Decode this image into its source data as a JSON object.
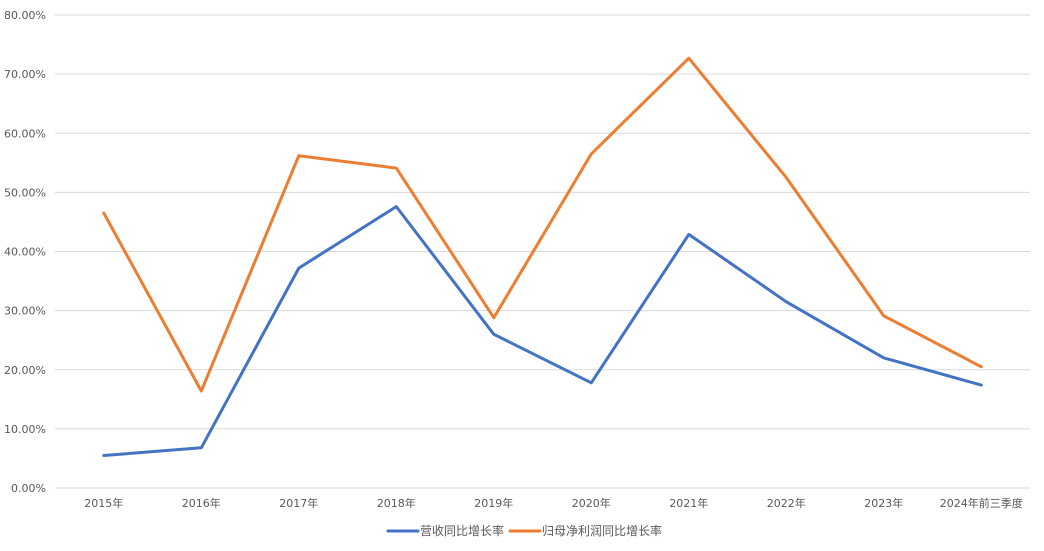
{
  "chart_data": {
    "type": "line",
    "title": "",
    "xlabel": "",
    "ylabel": "",
    "categories": [
      "2015年",
      "2016年",
      "2017年",
      "2018年",
      "2019年",
      "2020年",
      "2021年",
      "2022年",
      "2023年",
      "2024年前三季度"
    ],
    "ylim": [
      0,
      80
    ],
    "y_ticks": [
      "0.00%",
      "10.00%",
      "20.00%",
      "30.00%",
      "40.00%",
      "50.00%",
      "60.00%",
      "70.00%",
      "80.00%"
    ],
    "grid": true,
    "legend_position": "bottom",
    "series": [
      {
        "name": "营收同比增长率",
        "color": "#4472c4",
        "values": [
          5.5,
          6.8,
          37.2,
          47.6,
          26.0,
          17.8,
          42.9,
          31.5,
          22.0,
          17.4
        ]
      },
      {
        "name": "归母净利润同比增长率",
        "color": "#ed7d31",
        "values": [
          46.5,
          16.4,
          56.2,
          54.1,
          28.8,
          56.5,
          72.7,
          52.5,
          29.1,
          20.5
        ]
      }
    ]
  }
}
